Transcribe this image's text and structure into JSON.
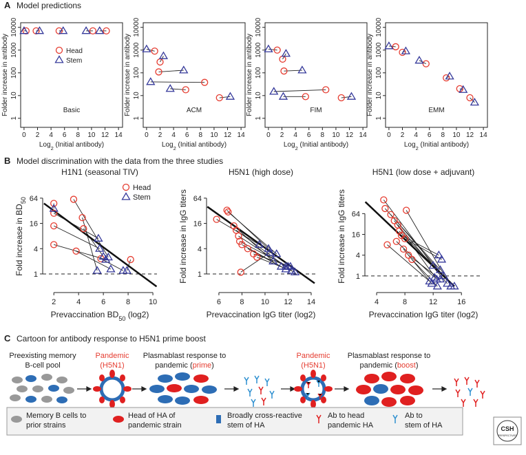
{
  "panels": [
    {
      "letter": "A",
      "title": "Model predictions"
    },
    {
      "letter": "B",
      "title": "Model discrimination with the data from the three studies"
    },
    {
      "letter": "C",
      "title": "Cartoon for antibody response to H5N1 prime boost"
    }
  ],
  "chart_data": [
    {
      "type": "scatter",
      "annotation": "Basic",
      "box": true,
      "legend": "upper center",
      "log_base": 10,
      "connect_pairs": true,
      "ylabel": [
        {
          "text": "Folder increase in antibody"
        }
      ],
      "xlabel": [
        {
          "text": "Log"
        },
        {
          "text": "2",
          "sub": true
        },
        {
          "text": " (Initial antibody)"
        }
      ],
      "xlim": [
        -0.5,
        14.6
      ],
      "xticks": [
        0,
        2,
        4,
        6,
        8,
        10,
        12,
        14
      ],
      "ylim": [
        0.4,
        16000
      ],
      "yticks": [
        1,
        10,
        100,
        1000,
        10000
      ],
      "series": [
        {
          "name": "Head",
          "color": "#e53b2f",
          "marker": "circle",
          "x": [
            0.3,
            1.8,
            5.2,
            10.2,
            12.2
          ],
          "y": [
            7000,
            7000,
            7000,
            7000,
            7000
          ]
        },
        {
          "name": "Stem",
          "color": "#35399a",
          "marker": "triangle",
          "x": [
            0,
            2.3,
            5.8,
            9.2,
            11.2
          ],
          "y": [
            7000,
            7000,
            7000,
            7000,
            7000
          ]
        }
      ]
    },
    {
      "type": "scatter",
      "annotation": "ACM",
      "box": true,
      "log_base": 10,
      "connect_pairs": true,
      "ylabel": [
        {
          "text": "Folder increase in antibody"
        }
      ],
      "xlabel": [
        {
          "text": "Log"
        },
        {
          "text": "2",
          "sub": true
        },
        {
          "text": " (Initial antibody)"
        }
      ],
      "xlim": [
        -0.5,
        14.6
      ],
      "xticks": [
        0,
        2,
        4,
        6,
        8,
        10,
        12,
        14
      ],
      "ylim": [
        0.4,
        16000
      ],
      "yticks": [
        1,
        10,
        100,
        1000,
        10000
      ],
      "series": [
        {
          "name": "Head",
          "color": "#e53b2f",
          "marker": "circle",
          "x": [
            1.2,
            2,
            1.8,
            8.6,
            5.8,
            10.8
          ],
          "y": [
            900,
            300,
            110,
            38,
            18,
            8
          ]
        },
        {
          "name": "Stem",
          "color": "#35399a",
          "marker": "triangle",
          "x": [
            0,
            2.5,
            5.5,
            0.6,
            3.5,
            12.4
          ],
          "y": [
            1100,
            550,
            130,
            40,
            20,
            9
          ]
        }
      ]
    },
    {
      "type": "scatter",
      "annotation": "FIM",
      "box": true,
      "log_base": 10,
      "connect_pairs": true,
      "ylabel": [
        {
          "text": "Folder increase in antibody"
        }
      ],
      "xlabel": [
        {
          "text": "Log"
        },
        {
          "text": "2",
          "sub": true
        },
        {
          "text": " (Initial antibody)"
        }
      ],
      "xlim": [
        -0.5,
        14.6
      ],
      "xticks": [
        0,
        2,
        4,
        6,
        8,
        10,
        12,
        14
      ],
      "ylim": [
        0.4,
        16000
      ],
      "yticks": [
        1,
        10,
        100,
        1000,
        10000
      ],
      "series": [
        {
          "name": "Head",
          "color": "#e53b2f",
          "marker": "circle",
          "x": [
            1.3,
            2.1,
            2.3,
            8.5,
            5.5,
            10.8
          ],
          "y": [
            1000,
            400,
            120,
            18,
            9,
            8
          ]
        },
        {
          "name": "Stem",
          "color": "#35399a",
          "marker": "triangle",
          "x": [
            0,
            2.6,
            5.0,
            0.8,
            2.2,
            12.3
          ],
          "y": [
            1100,
            700,
            130,
            15,
            9,
            9
          ]
        }
      ]
    },
    {
      "type": "scatter",
      "annotation": "EMM",
      "box": true,
      "log_base": 10,
      "connect_pairs": true,
      "ylabel": [
        {
          "text": "Folder increase in antibody"
        }
      ],
      "xlabel": [
        {
          "text": "Log"
        },
        {
          "text": "2",
          "sub": true
        },
        {
          "text": " (Initial antibody)"
        }
      ],
      "xlim": [
        -0.5,
        14.6
      ],
      "xticks": [
        0,
        2,
        4,
        6,
        8,
        10,
        12,
        14
      ],
      "ylim": [
        0.4,
        16000
      ],
      "yticks": [
        1,
        10,
        100,
        1000,
        10000
      ],
      "series": [
        {
          "name": "Head",
          "color": "#e53b2f",
          "marker": "circle",
          "x": [
            1,
            2,
            5.5,
            8.5,
            10.5,
            12
          ],
          "y": [
            1400,
            800,
            250,
            60,
            20,
            8
          ]
        },
        {
          "name": "Stem",
          "color": "#35399a",
          "marker": "triangle",
          "x": [
            0,
            2.5,
            4.5,
            9,
            11,
            12.7
          ],
          "y": [
            1500,
            900,
            350,
            70,
            18,
            5
          ]
        }
      ]
    },
    {
      "type": "scatter",
      "title": "H1N1 (seasonal TIV)",
      "box": false,
      "legend": "upper right",
      "log_base": 2,
      "connect_pairs": true,
      "ylabel": [
        {
          "text": "Fold increase in BD"
        },
        {
          "text": "50",
          "sub": true
        }
      ],
      "xlabel": [
        {
          "text": "Prevaccination BD"
        },
        {
          "text": "50",
          "sub": true
        },
        {
          "text": " (log2)"
        }
      ],
      "xlim": [
        1.1,
        10.33
      ],
      "xticks": [
        2,
        4,
        6,
        8,
        10
      ],
      "ylim": [
        0.36,
        170
      ],
      "yticks": [
        1,
        4,
        16,
        64
      ],
      "fit": {
        "x": [
          1.2,
          10.3
        ],
        "y": [
          48,
          0.5
        ]
      },
      "refline": 1,
      "series": [
        {
          "name": "Head",
          "color": "#e53b2f",
          "marker": "circle",
          "x": [
            2,
            2,
            2,
            2,
            3.6,
            4.3,
            4.4,
            3.8,
            5.8,
            8.2
          ],
          "y": [
            48,
            28,
            14,
            5,
            60,
            22,
            12,
            3.5,
            2.3,
            2.2
          ]
        },
        {
          "name": "Stem",
          "color": "#35399a",
          "marker": "triangle",
          "x": [
            2,
            5.6,
            5.7,
            6.2,
            6.4,
            5.5,
            6.0,
            6.6,
            7.6,
            7.9
          ],
          "y": [
            36,
            7,
            4,
            2.2,
            2.5,
            1.2,
            2.6,
            1.3,
            1.2,
            1.2
          ]
        }
      ]
    },
    {
      "type": "scatter",
      "title": "H5N1 (high dose)",
      "box": false,
      "log_base": 2,
      "connect_pairs": true,
      "ylabel": [
        {
          "text": "Fold increase in IgG titers"
        }
      ],
      "xlabel": [
        {
          "text": "Prevaccination IgG titer (log2)"
        }
      ],
      "xlim": [
        4.93,
        14.36
      ],
      "xticks": [
        6,
        8,
        10,
        12,
        14
      ],
      "ylim": [
        0.36,
        170
      ],
      "yticks": [
        1,
        4,
        16,
        64
      ],
      "fit": {
        "x": [
          5,
          14.3
        ],
        "y": [
          40,
          0.6
        ]
      },
      "refline": 1,
      "series": [
        {
          "name": "Head",
          "color": "#e53b2f",
          "marker": "circle",
          "x": [
            6.7,
            6.8,
            7.3,
            7.5,
            7.7,
            7.8,
            8,
            7.9,
            8.5,
            9,
            9.3,
            5.8
          ],
          "y": [
            33,
            30,
            14,
            11,
            8,
            6,
            5,
            1.1,
            4,
            3,
            2.5,
            20
          ]
        },
        {
          "name": "Stem",
          "color": "#35399a",
          "marker": "triangle",
          "x": [
            10.3,
            11,
            10.7,
            11.8,
            12.3,
            12.0,
            11.4,
            10.4,
            11.8,
            12.2,
            12.6,
            9.5
          ],
          "y": [
            4,
            3,
            2,
            1.5,
            1.2,
            1.5,
            1.5,
            3.2,
            1.3,
            1.5,
            1.1,
            5
          ]
        }
      ]
    },
    {
      "type": "scatter",
      "title": "H5N1 (low dose + adjuvant)",
      "box": false,
      "log_base": 2,
      "connect_pairs": true,
      "ylabel": [
        {
          "text": "Fold increase in IgG titers"
        }
      ],
      "xlabel": [
        {
          "text": "Prevaccination IgG titer (log2)"
        }
      ],
      "xlim": [
        2.34,
        18.9
      ],
      "xticks": [
        4,
        8,
        12,
        16
      ],
      "ylim": [
        0.33,
        590
      ],
      "yticks": [
        1,
        4,
        16,
        64
      ],
      "fit": {
        "x": [
          2.4,
          15
        ],
        "y": [
          140,
          0.5
        ]
      },
      "refline": 1,
      "series": [
        {
          "name": "Head",
          "color": "#e53b2f",
          "marker": "circle",
          "x": [
            5,
            5.2,
            6,
            6.5,
            7,
            7.2,
            7.5,
            8,
            8.2,
            5.5,
            6.8,
            7.8,
            8.5,
            9
          ],
          "y": [
            160,
            90,
            60,
            40,
            30,
            20,
            15,
            12,
            80,
            8,
            10,
            6,
            4,
            3
          ]
        },
        {
          "name": "Stem",
          "color": "#35399a",
          "marker": "triangle",
          "x": [
            12,
            13,
            13.5,
            12.5,
            14,
            15,
            12.8,
            13.2,
            14.5,
            11.5,
            12.2,
            11.8,
            13,
            12.6
          ],
          "y": [
            2,
            1.5,
            1,
            0.8,
            0.6,
            0.5,
            4,
            3,
            0.5,
            0.7,
            0.9,
            0.6,
            0.8,
            0.5
          ]
        }
      ]
    }
  ],
  "cartoon": {
    "stage1": [
      "Preexisting memory",
      "B-cell pool"
    ],
    "stage2": [
      "Pandemic",
      "(H5N1)"
    ],
    "stage3": {
      "line1": "Plasmablast response to",
      "pre": "pandemic (",
      "highlight": "prime",
      "post": ")"
    },
    "stage4": [
      "Pandemic",
      "(H5N1)"
    ],
    "stage5": {
      "line1": "Plasmablast response to",
      "pre": "pandemic (",
      "highlight": "boost",
      "post": ")"
    },
    "legend": [
      [
        "Memory B cells to",
        "prior strains"
      ],
      [
        "Head of HA of",
        "pandemic strain"
      ],
      [
        "Broadly cross-reactive",
        "stem of HA"
      ],
      [
        "Ab to head",
        "pandemic HA"
      ],
      [
        "Ab to",
        "stem of HA"
      ]
    ],
    "logo": [
      "CSH",
      "PERSPECTIVES"
    ]
  }
}
